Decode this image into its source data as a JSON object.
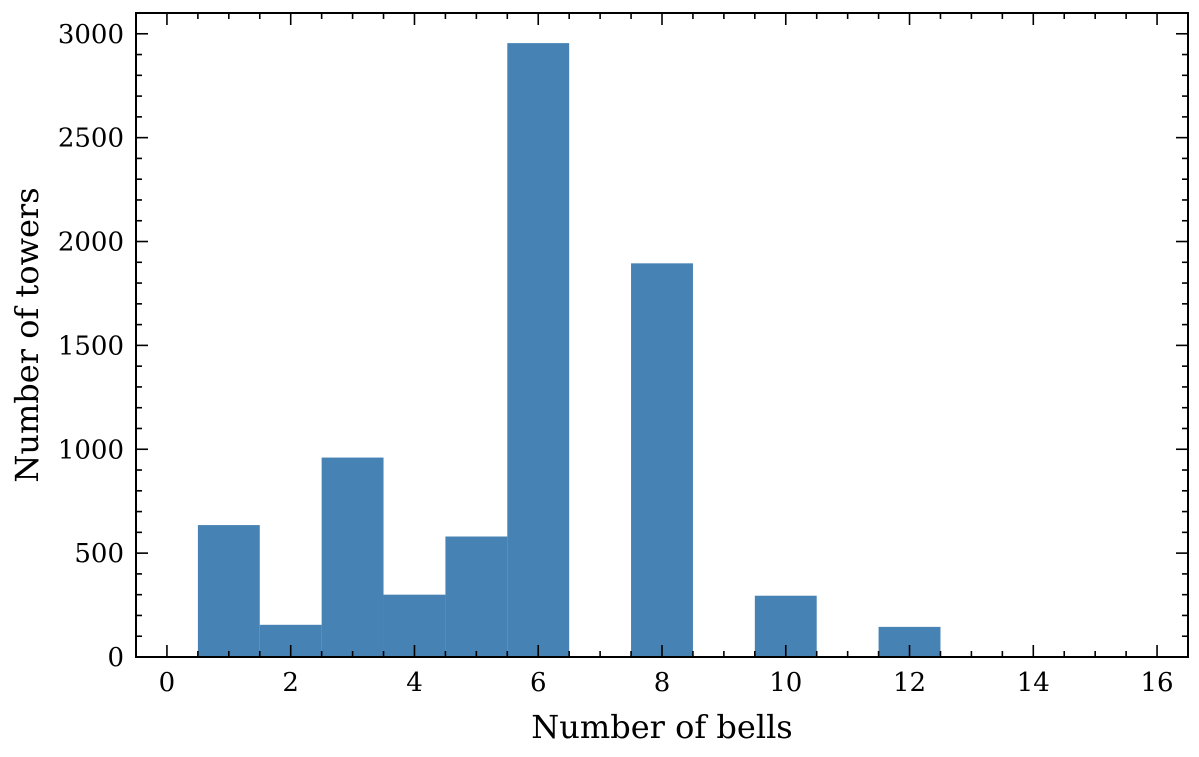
{
  "chart_data": {
    "type": "bar",
    "xlabel": "Number of bells",
    "ylabel": "Number of towers",
    "xlim": [
      -0.5,
      16.5
    ],
    "ylim": [
      0,
      3100
    ],
    "bar_width": 1,
    "x": [
      1,
      2,
      3,
      4,
      5,
      6,
      8,
      10,
      12
    ],
    "values": [
      635,
      155,
      960,
      300,
      580,
      2955,
      1895,
      295,
      145
    ],
    "x_ticks": [
      "0",
      "2",
      "4",
      "6",
      "8",
      "10",
      "12",
      "14",
      "16"
    ],
    "y_ticks": [
      "0",
      "500",
      "1000",
      "1500",
      "2000",
      "2500",
      "3000"
    ],
    "bar_color": "#4682b4",
    "grid": false,
    "legend": "none"
  }
}
